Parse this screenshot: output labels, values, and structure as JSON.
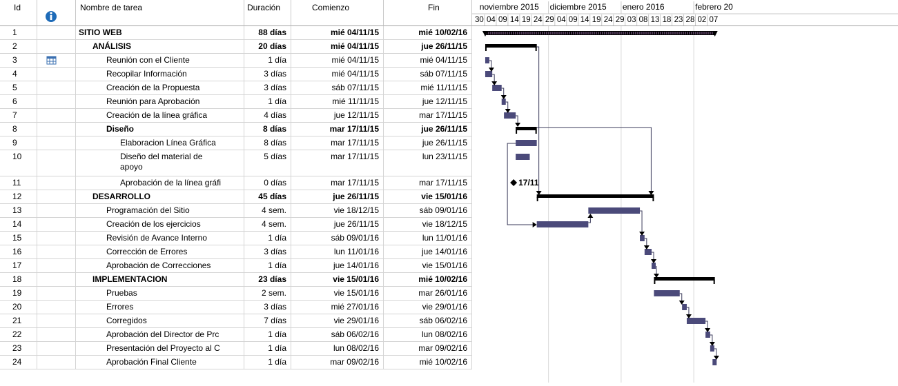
{
  "columns": {
    "id": "Id",
    "name": "Nombre de tarea",
    "duration": "Duración",
    "start": "Comienzo",
    "end": "Fin"
  },
  "timeline": {
    "months": [
      "noviembre 2015",
      "diciembre 2015",
      "enero 2016",
      "febrero 20"
    ],
    "days": [
      "30",
      "04",
      "09",
      "14",
      "19",
      "24",
      "29",
      "04",
      "09",
      "14",
      "19",
      "24",
      "29",
      "03",
      "08",
      "13",
      "18",
      "23",
      "28",
      "02",
      "07"
    ],
    "milestone_label": "17/11"
  },
  "colors": {
    "bar": "#4b4a7a",
    "summary": "#000000",
    "grid": "#d4d4d4",
    "info_icon": "#1e6bb8"
  },
  "tasks": [
    {
      "id": "1",
      "name": "SITIO WEB",
      "duration": "88 días",
      "start": "mié 04/11/15",
      "end": "mié 10/02/16",
      "level": 0,
      "bold": true
    },
    {
      "id": "2",
      "name": "ANÁLISIS",
      "duration": "20 días",
      "start": "mié 04/11/15",
      "end": "jue 26/11/15",
      "level": 1,
      "bold": true
    },
    {
      "id": "3",
      "name": "Reunión con el Cliente",
      "duration": "1 día",
      "start": "mié 04/11/15",
      "end": "mié 04/11/15",
      "level": 2,
      "bold": false,
      "indicator": "calendar-icon"
    },
    {
      "id": "4",
      "name": "Recopilar Información",
      "duration": "3 días",
      "start": "mié 04/11/15",
      "end": "sáb 07/11/15",
      "level": 2,
      "bold": false
    },
    {
      "id": "5",
      "name": "Creación de la Propuesta",
      "duration": "3 días",
      "start": "sáb 07/11/15",
      "end": "mié 11/11/15",
      "level": 2,
      "bold": false
    },
    {
      "id": "6",
      "name": "Reunión para Aprobación",
      "duration": "1 día",
      "start": "mié 11/11/15",
      "end": "jue 12/11/15",
      "level": 2,
      "bold": false
    },
    {
      "id": "7",
      "name": "Creación de la línea gráfica",
      "duration": "4 días",
      "start": "jue 12/11/15",
      "end": "mar 17/11/15",
      "level": 2,
      "bold": false
    },
    {
      "id": "8",
      "name": "Diseño",
      "duration": "8 días",
      "start": "mar 17/11/15",
      "end": "jue 26/11/15",
      "level": 2,
      "bold": true
    },
    {
      "id": "9",
      "name": "Elaboracion Línea Gráfica",
      "duration": "8 días",
      "start": "mar 17/11/15",
      "end": "jue 26/11/15",
      "level": 3,
      "bold": false
    },
    {
      "id": "10",
      "name": "Diseño del material de apoyo",
      "duration": "5 días",
      "start": "mar 17/11/15",
      "end": "lun 23/11/15",
      "level": 3,
      "bold": false
    },
    {
      "id": "11",
      "name": "Aprobación de la línea gráfi",
      "duration": "0 días",
      "start": "mar 17/11/15",
      "end": "mar 17/11/15",
      "level": 3,
      "bold": false
    },
    {
      "id": "12",
      "name": "DESARROLLO",
      "duration": "45 días",
      "start": "jue 26/11/15",
      "end": "vie 15/01/16",
      "level": 1,
      "bold": true
    },
    {
      "id": "13",
      "name": "Programación del Sitio",
      "duration": "4 sem.",
      "start": "vie 18/12/15",
      "end": "sáb 09/01/16",
      "level": 2,
      "bold": false
    },
    {
      "id": "14",
      "name": "Creación de los ejercicios",
      "duration": "4 sem.",
      "start": "jue 26/11/15",
      "end": "vie 18/12/15",
      "level": 2,
      "bold": false
    },
    {
      "id": "15",
      "name": "Revisión de Avance Interno",
      "duration": "1 día",
      "start": "sáb 09/01/16",
      "end": "lun 11/01/16",
      "level": 2,
      "bold": false
    },
    {
      "id": "16",
      "name": "Corrección de Errores",
      "duration": "3 días",
      "start": "lun 11/01/16",
      "end": "jue 14/01/16",
      "level": 2,
      "bold": false
    },
    {
      "id": "17",
      "name": "Aprobación de Correcciones",
      "duration": "1 día",
      "start": "jue 14/01/16",
      "end": "vie 15/01/16",
      "level": 2,
      "bold": false
    },
    {
      "id": "18",
      "name": "IMPLEMENTACION",
      "duration": "23 días",
      "start": "vie 15/01/16",
      "end": "mié 10/02/16",
      "level": 1,
      "bold": true
    },
    {
      "id": "19",
      "name": "Pruebas",
      "duration": "2 sem.",
      "start": "vie 15/01/16",
      "end": "mar 26/01/16",
      "level": 2,
      "bold": false
    },
    {
      "id": "20",
      "name": "Errores",
      "duration": "3 días",
      "start": "mié 27/01/16",
      "end": "vie 29/01/16",
      "level": 2,
      "bold": false
    },
    {
      "id": "21",
      "name": "Corregidos",
      "duration": "7 días",
      "start": "vie 29/01/16",
      "end": "sáb 06/02/16",
      "level": 2,
      "bold": false
    },
    {
      "id": "22",
      "name": "Aprobación del Director de Prc",
      "duration": "1 día",
      "start": "sáb 06/02/16",
      "end": "lun 08/02/16",
      "level": 2,
      "bold": false
    },
    {
      "id": "23",
      "name": "Presentación del Proyecto al C",
      "duration": "1 día",
      "start": "lun 08/02/16",
      "end": "mar 09/02/16",
      "level": 2,
      "bold": false
    },
    {
      "id": "24",
      "name": "Aprobación Final Cliente",
      "duration": "1 día",
      "start": "mar 09/02/16",
      "end": "mié 10/02/16",
      "level": 2,
      "bold": false
    }
  ]
}
